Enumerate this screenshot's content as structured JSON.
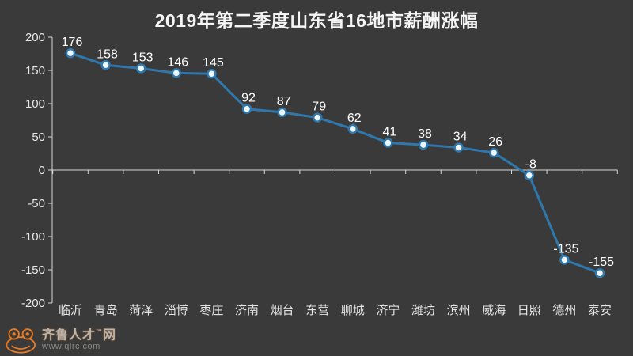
{
  "chart_data": {
    "type": "line",
    "title": "2019年第二季度山东省16地市薪酬涨幅",
    "categories": [
      "临沂",
      "青岛",
      "菏泽",
      "淄博",
      "枣庄",
      "济南",
      "烟台",
      "东营",
      "聊城",
      "济宁",
      "潍坊",
      "滨州",
      "威海",
      "日照",
      "德州",
      "泰安"
    ],
    "values": [
      176,
      158,
      153,
      146,
      145,
      92,
      87,
      79,
      62,
      41,
      38,
      34,
      26,
      -8,
      -135,
      -155
    ],
    "xlabel": "",
    "ylabel": "",
    "ylim": [
      -200,
      200
    ],
    "yticks": [
      200,
      150,
      100,
      50,
      0,
      -50,
      -100,
      -150,
      -200
    ],
    "grid": false,
    "legend": "none",
    "colors": {
      "background": "#3a3a3a",
      "line": "#2f78ad",
      "point_fill": "#eef7fd",
      "axis": "#d6d6d6",
      "value_label": "#ffffff",
      "tick_label": "#e8e8e8",
      "category_label": "#e3e3e3"
    }
  },
  "logo": {
    "name_pre": "齐鲁人才",
    "trademark": "™",
    "name_post": "网",
    "url": "www.qlrc.com",
    "brand_color": "#e87a22"
  }
}
